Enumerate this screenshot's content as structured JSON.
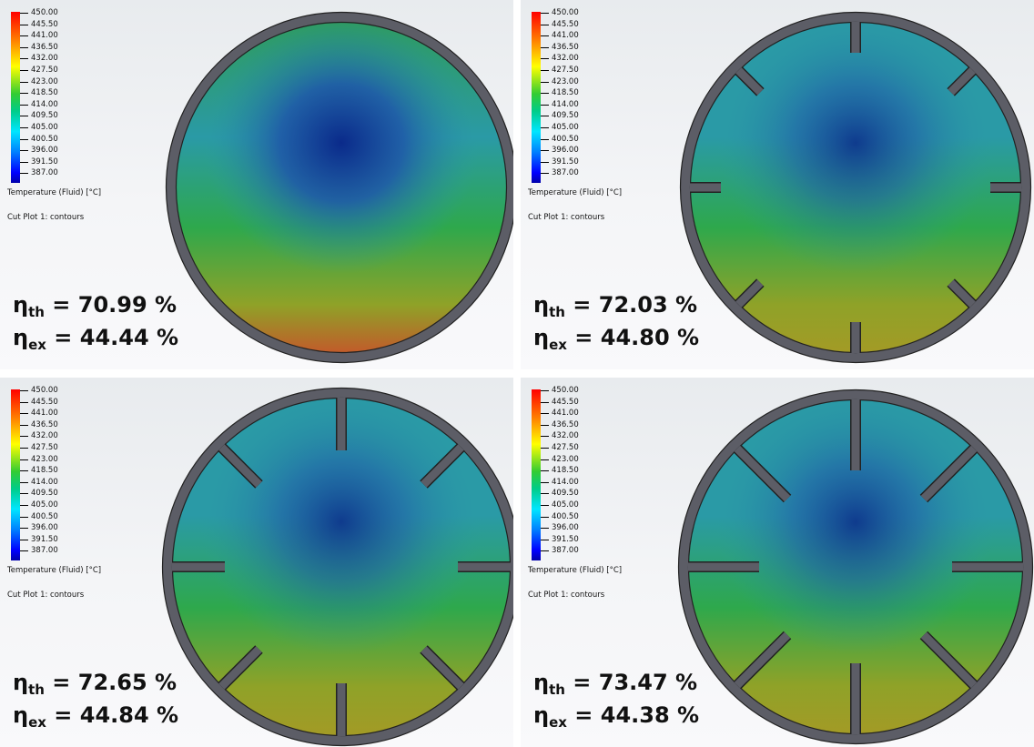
{
  "legend": {
    "ticks": [
      "450.00",
      "445.50",
      "441.00",
      "436.50",
      "432.00",
      "427.50",
      "423.00",
      "418.50",
      "414.00",
      "409.50",
      "405.00",
      "400.50",
      "396.00",
      "391.50",
      "387.00"
    ],
    "quantity_label": "Temperature (Fluid) [°C]",
    "plot_label": "Cut Plot 1: contours"
  },
  "panels": [
    {
      "id": "a",
      "eta_th": "70.99 %",
      "eta_ex": "44.44 %",
      "fins": 0
    },
    {
      "id": "b",
      "eta_th": "72.03 %",
      "eta_ex": "44.80 %",
      "fins": 8
    },
    {
      "id": "c",
      "eta_th": "72.65 %",
      "eta_ex": "44.84 %",
      "fins": 8
    },
    {
      "id": "d",
      "eta_th": "73.47 %",
      "eta_ex": "44.38 %",
      "fins": 8
    }
  ],
  "symbols": {
    "eta": "η",
    "th": "th",
    "ex": "ex",
    "eq": " = "
  },
  "colors": {
    "cold": "#0a2a8a",
    "mid": "#2a9aa6",
    "warm": "#2ea84c",
    "hot": "#c4582a",
    "frame": "#5c5d66",
    "frame_edge": "#222222"
  }
}
